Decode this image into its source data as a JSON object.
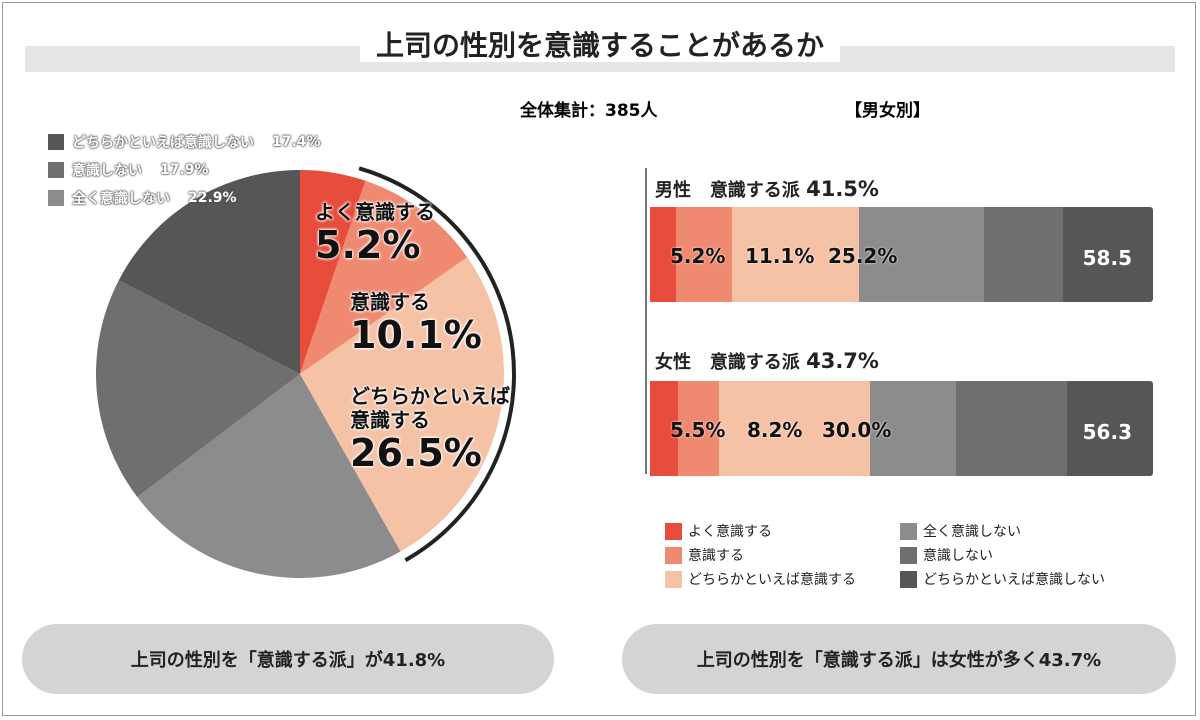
{
  "title": "上司の性別を意識することがあるか",
  "total_label": "全体集計：385人",
  "by_sex_label": "【男女別】",
  "colors": {
    "very": "#e84c3d",
    "aware": "#ef8a70",
    "somewhat": "#f5c2a6",
    "none": "#8c8c8c",
    "not": "#6f6f6f",
    "rather_not": "#565656"
  },
  "chart_data": [
    {
      "type": "pie",
      "title": "",
      "categories": [
        "よく意識する",
        "意識する",
        "どちらかといえば意識する",
        "全く意識しない",
        "意識しない",
        "どちらかといえば意識しない"
      ],
      "values": [
        5.2,
        10.1,
        26.5,
        22.9,
        17.9,
        17.4
      ],
      "labels": [
        {
          "lbl": "よく意識する",
          "val": "5.2%"
        },
        {
          "lbl": "意識する",
          "val": "10.1%"
        },
        {
          "lbl": "どちらかといえば\n意識する",
          "lbl1": "どちらかといえば",
          "lbl2": "意識する",
          "val": "26.5%"
        }
      ],
      "gray_legend": [
        {
          "name": "どちらかといえば意識しない",
          "pct": "17.4%"
        },
        {
          "name": "意識しない",
          "pct": "17.9%"
        },
        {
          "name": "全く意識しない",
          "pct": "22.9%"
        }
      ]
    },
    {
      "type": "bar",
      "stacked": true,
      "orientation": "horizontal",
      "categories": [
        "男性",
        "女性"
      ],
      "row_titles": [
        {
          "sex": "男性",
          "aware_label": "意識する派",
          "aware_pct": "41.5%"
        },
        {
          "sex": "女性",
          "aware_label": "意識する派",
          "aware_pct": "43.7%"
        }
      ],
      "series": [
        {
          "name": "よく意識する",
          "values": [
            5.2,
            5.5
          ]
        },
        {
          "name": "意識する",
          "values": [
            11.1,
            8.2
          ]
        },
        {
          "name": "どちらかといえば意識する",
          "values": [
            25.2,
            30.0
          ]
        },
        {
          "name": "全く意識しない",
          "values": [
            24.9,
            17.2
          ]
        },
        {
          "name": "意識しない",
          "values": [
            15.8,
            22.0
          ]
        },
        {
          "name": "どちらかといえば意識しない",
          "values": [
            17.8,
            17.1
          ]
        }
      ],
      "bar_labels": [
        [
          "5.2%",
          "11.1%",
          "25.2%"
        ],
        [
          "5.5%",
          "8.2%",
          "30.0%"
        ]
      ],
      "not_aware_totals": [
        "58.5",
        "56.3"
      ],
      "legend": [
        "よく意識する",
        "意識する",
        "どちらかといえば意識する",
        "全く意識しない",
        "意識しない",
        "どちらかといえば意識しない"
      ]
    }
  ],
  "summary": {
    "left": "上司の性別を「意識する派」が41.8%",
    "right": "上司の性別を「意識する派」は女性が多く43.7%"
  }
}
